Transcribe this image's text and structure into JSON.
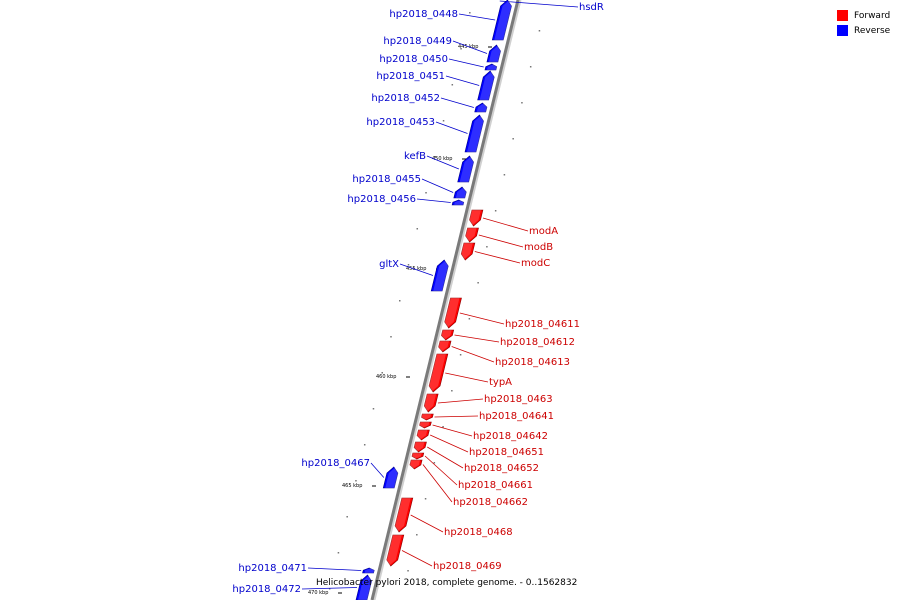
{
  "legend": {
    "forward_label": "Forward",
    "forward_color": "#ff0000",
    "reverse_label": "Reverse",
    "reverse_color": "#0000ff"
  },
  "caption": "Helicobacter pylori 2018, complete genome. - 0..1562832",
  "tick_labels": [
    "445 kbp",
    "450 kbp",
    "455 kbp",
    "460 kbp",
    "465 kbp",
    "470 kbp"
  ],
  "genes": [
    {
      "name": "hsdR",
      "strand": "reverse"
    },
    {
      "name": "hp2018_0448",
      "strand": "reverse"
    },
    {
      "name": "hp2018_0449",
      "strand": "reverse"
    },
    {
      "name": "hp2018_0450",
      "strand": "reverse"
    },
    {
      "name": "hp2018_0451",
      "strand": "reverse"
    },
    {
      "name": "hp2018_0452",
      "strand": "reverse"
    },
    {
      "name": "hp2018_0453",
      "strand": "reverse"
    },
    {
      "name": "kefB",
      "strand": "reverse"
    },
    {
      "name": "hp2018_0455",
      "strand": "reverse"
    },
    {
      "name": "hp2018_0456",
      "strand": "reverse"
    },
    {
      "name": "modA",
      "strand": "forward"
    },
    {
      "name": "modB",
      "strand": "forward"
    },
    {
      "name": "modC",
      "strand": "forward"
    },
    {
      "name": "gltX",
      "strand": "reverse"
    },
    {
      "name": "hp2018_04611",
      "strand": "forward"
    },
    {
      "name": "hp2018_04612",
      "strand": "forward"
    },
    {
      "name": "hp2018_04613",
      "strand": "forward"
    },
    {
      "name": "typA",
      "strand": "forward"
    },
    {
      "name": "hp2018_0463",
      "strand": "forward"
    },
    {
      "name": "hp2018_04641",
      "strand": "forward"
    },
    {
      "name": "hp2018_04642",
      "strand": "forward"
    },
    {
      "name": "hp2018_04651",
      "strand": "forward"
    },
    {
      "name": "hp2018_04652",
      "strand": "forward"
    },
    {
      "name": "hp2018_04661",
      "strand": "forward"
    },
    {
      "name": "hp2018_04662",
      "strand": "forward"
    },
    {
      "name": "hp2018_0467",
      "strand": "reverse"
    },
    {
      "name": "hp2018_0468",
      "strand": "forward"
    },
    {
      "name": "hp2018_0469",
      "strand": "forward"
    },
    {
      "name": "hp2018_0471",
      "strand": "reverse"
    },
    {
      "name": "hp2018_0472",
      "strand": "reverse"
    }
  ]
}
